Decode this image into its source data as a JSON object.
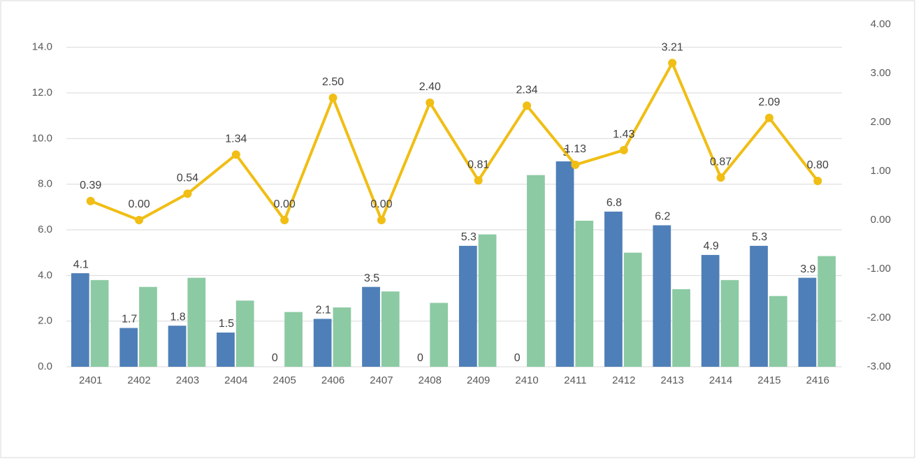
{
  "chart_data": {
    "type": "combo",
    "categories": [
      "2401",
      "2402",
      "2403",
      "2404",
      "2405",
      "2406",
      "2407",
      "2408",
      "2409",
      "2410",
      "2411",
      "2412",
      "2413",
      "2414",
      "2415",
      "2416"
    ],
    "series": [
      {
        "type": "bar",
        "color": "#4f7fb8",
        "values": [
          4.1,
          1.7,
          1.8,
          1.5,
          0.0,
          2.1,
          3.5,
          0.0,
          5.3,
          0.0,
          9.0,
          6.8,
          6.2,
          4.9,
          5.3,
          3.9
        ]
      },
      {
        "type": "bar",
        "color": "#8ccaa4",
        "values": [
          3.8,
          3.5,
          3.9,
          2.9,
          2.4,
          2.6,
          3.3,
          2.8,
          5.8,
          8.4,
          6.4,
          5.0,
          3.4,
          3.8,
          3.1,
          4.85
        ]
      },
      {
        "type": "line",
        "axis": "y2",
        "color": "#f0be14",
        "values": [
          0.39,
          0.0,
          0.54,
          1.34,
          0.0,
          2.5,
          0.0,
          2.4,
          0.81,
          2.34,
          1.13,
          1.43,
          3.21,
          0.87,
          2.09,
          0.8
        ],
        "value_labels": [
          "0.39",
          "0.00",
          "0.54",
          "1.34",
          "0.00",
          "2.50",
          "0.00",
          "2.40",
          "0.81",
          "2.34",
          "1.13",
          "1.43",
          "3.21",
          "0.87",
          "2.09",
          "0.80"
        ]
      }
    ],
    "ylim": [
      0,
      15
    ],
    "yticks": [
      {
        "value": 0,
        "label": "0.0"
      },
      {
        "value": 2,
        "label": "2.0"
      },
      {
        "value": 4,
        "label": "4.0"
      },
      {
        "value": 6,
        "label": "6.0"
      },
      {
        "value": 8,
        "label": "8.0"
      },
      {
        "value": 10,
        "label": "10.0"
      },
      {
        "value": 12,
        "label": "12.0"
      },
      {
        "value": 14,
        "label": "14.0"
      }
    ],
    "y2lim": [
      -3,
      4
    ],
    "y2ticks": [
      {
        "value": -3,
        "label": "-3.00"
      },
      {
        "value": -2,
        "label": "-2.00"
      },
      {
        "value": -1,
        "label": "-1.00"
      },
      {
        "value": 0,
        "label": "0.00"
      },
      {
        "value": 1,
        "label": "1.00"
      },
      {
        "value": 2,
        "label": "2.00"
      },
      {
        "value": 3,
        "label": "3.00"
      },
      {
        "value": 4,
        "label": "4.00"
      }
    ],
    "grid": true
  }
}
